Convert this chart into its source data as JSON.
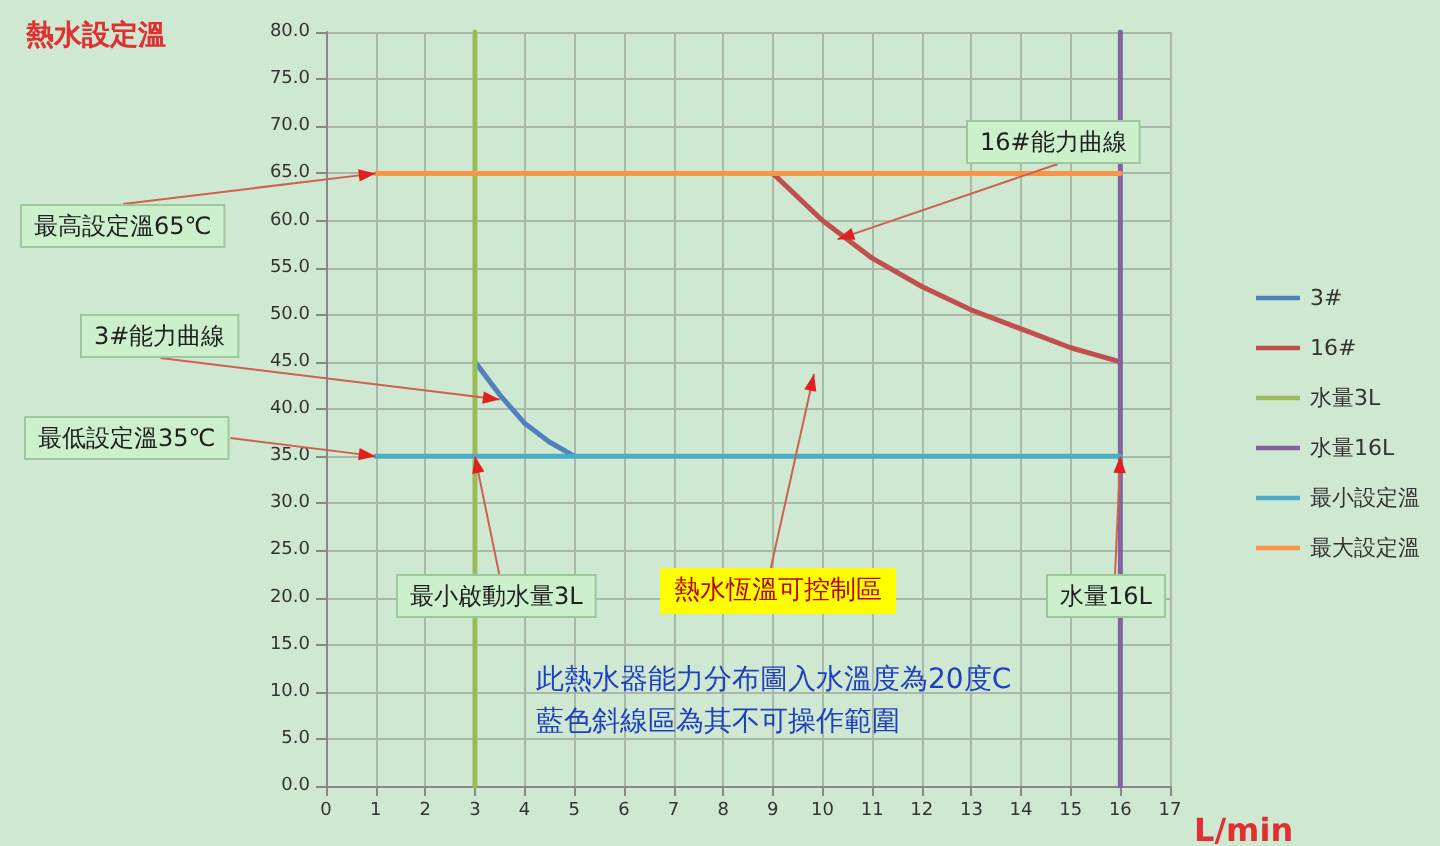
{
  "chart_data": {
    "type": "line",
    "title": "熱水設定溫",
    "xlabel": "L/min",
    "xlim": [
      0,
      17
    ],
    "xticks": [
      0,
      1,
      2,
      3,
      4,
      5,
      6,
      7,
      8,
      9,
      10,
      11,
      12,
      13,
      14,
      15,
      16,
      17
    ],
    "ylim": [
      0,
      80
    ],
    "yticks": [
      {
        "value": 0,
        "label": "0.0"
      },
      {
        "value": 5,
        "label": "5.0"
      },
      {
        "value": 10,
        "label": "10.0"
      },
      {
        "value": 15,
        "label": "15.0"
      },
      {
        "value": 20,
        "label": "20.0"
      },
      {
        "value": 25,
        "label": "25.0"
      },
      {
        "value": 30,
        "label": "30.0"
      },
      {
        "value": 35,
        "label": "35.0"
      },
      {
        "value": 40,
        "label": "40.0"
      },
      {
        "value": 45,
        "label": "45.0"
      },
      {
        "value": 50,
        "label": "50.0"
      },
      {
        "value": 55,
        "label": "55.0"
      },
      {
        "value": 60,
        "label": "60.0"
      },
      {
        "value": 65,
        "label": "65.0"
      },
      {
        "value": 70,
        "label": "70.0"
      },
      {
        "value": 75,
        "label": "75.0"
      },
      {
        "value": 80,
        "label": "80.0"
      }
    ],
    "grid": true,
    "legend": "right",
    "marker": "none",
    "line_style": "solid",
    "series": [
      {
        "name": "3#",
        "color": "#4f81bd",
        "x": [
          3,
          3.5,
          4,
          4.5,
          5
        ],
        "values": [
          45,
          41.5,
          38.5,
          36.5,
          35
        ]
      },
      {
        "name": "16#",
        "color": "#c0504d",
        "x": [
          9,
          10,
          11,
          12,
          13,
          14,
          15,
          16
        ],
        "values": [
          65,
          60,
          56,
          53,
          50.5,
          48.5,
          46.5,
          45
        ]
      },
      {
        "name": "水量3L",
        "color": "#9bbb59",
        "x": [
          3,
          3
        ],
        "values": [
          0,
          80
        ]
      },
      {
        "name": "水量16L",
        "color": "#8064a2",
        "x": [
          16,
          16
        ],
        "values": [
          0,
          80
        ]
      },
      {
        "name": "最小設定溫",
        "color": "#4bacc6",
        "x": [
          1,
          16
        ],
        "values": [
          35,
          35
        ]
      },
      {
        "name": "最大設定溫",
        "color": "#f79646",
        "x": [
          1,
          16
        ],
        "values": [
          65,
          65
        ]
      }
    ],
    "annotations": [
      {
        "text": "最高設定溫65℃",
        "x": 1,
        "y": 65
      },
      {
        "text": "3#能力曲線",
        "x": 3.5,
        "y": 41
      },
      {
        "text": "最低設定溫35℃",
        "x": 1,
        "y": 35
      },
      {
        "text": "16#能力曲線",
        "x": 10.3,
        "y": 58
      },
      {
        "text": "最小啟動水量3L",
        "x": 3,
        "y": 35
      },
      "熱水恆溫可控制區",
      {
        "text": "水量16L",
        "x": 16,
        "y": 35
      },
      "此熱水器能力分布圖入水溫度為20度C",
      "藍色斜線區為其不可操作範圍"
    ]
  }
}
